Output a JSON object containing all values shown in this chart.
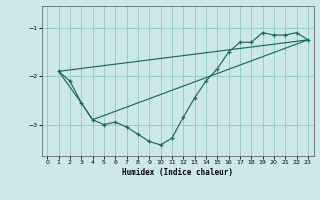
{
  "xlabel": "Humidex (Indice chaleur)",
  "background_color": "#cce8e8",
  "grid_color": "#99cccc",
  "line_color": "#1a6b5a",
  "xlim": [
    -0.5,
    23.5
  ],
  "ylim": [
    -3.65,
    -0.55
  ],
  "yticks": [
    -3,
    -2,
    -1
  ],
  "xticks": [
    0,
    1,
    2,
    3,
    4,
    5,
    6,
    7,
    8,
    9,
    10,
    11,
    12,
    13,
    14,
    15,
    16,
    17,
    18,
    19,
    20,
    21,
    22,
    23
  ],
  "line1_x": [
    1,
    2,
    3,
    4,
    5,
    6,
    7,
    8,
    9,
    10,
    11,
    12,
    13,
    14,
    15,
    16,
    17,
    18,
    19,
    20,
    21,
    22,
    23
  ],
  "line1_y": [
    -1.9,
    -2.1,
    -2.55,
    -2.9,
    -3.0,
    -2.95,
    -3.05,
    -3.2,
    -3.35,
    -3.42,
    -3.28,
    -2.85,
    -2.45,
    -2.1,
    -1.85,
    -1.5,
    -1.3,
    -1.3,
    -1.1,
    -1.15,
    -1.15,
    -1.1,
    -1.25
  ],
  "line2_x": [
    1,
    3,
    4,
    23
  ],
  "line2_y": [
    -1.9,
    -2.55,
    -2.9,
    -1.25
  ],
  "line3_x": [
    1,
    23
  ],
  "line3_y": [
    -1.9,
    -1.25
  ]
}
